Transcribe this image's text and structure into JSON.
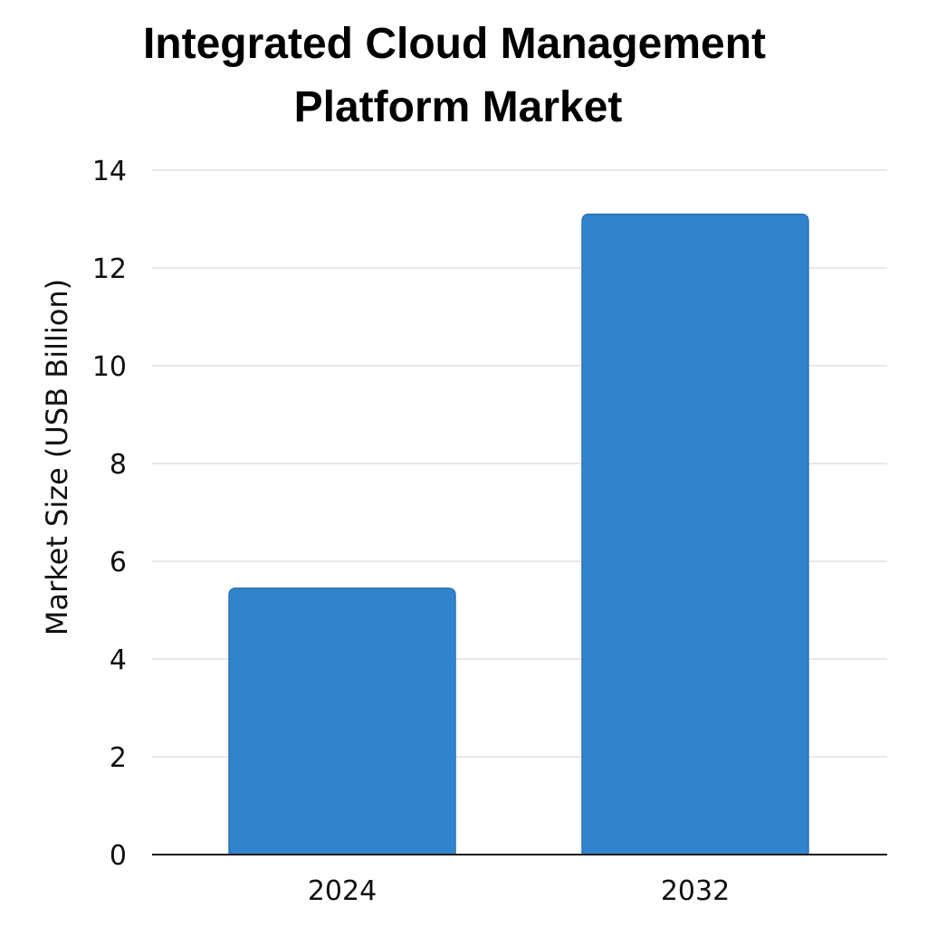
{
  "chart_data": {
    "type": "bar",
    "title_lines": [
      "Integrated Cloud Management",
      "Platform Market"
    ],
    "categories": [
      "2024",
      "2032"
    ],
    "values": [
      5.45,
      13.1
    ],
    "xlabel": "",
    "ylabel": "Market Size (USB Billion)",
    "ylim": [
      0,
      14
    ],
    "yticks": [
      0,
      2,
      4,
      6,
      8,
      10,
      12,
      14
    ],
    "grid": true,
    "legend": "none",
    "bar_color": "#3084cc",
    "bar_edge_color": "#2a73b6"
  }
}
